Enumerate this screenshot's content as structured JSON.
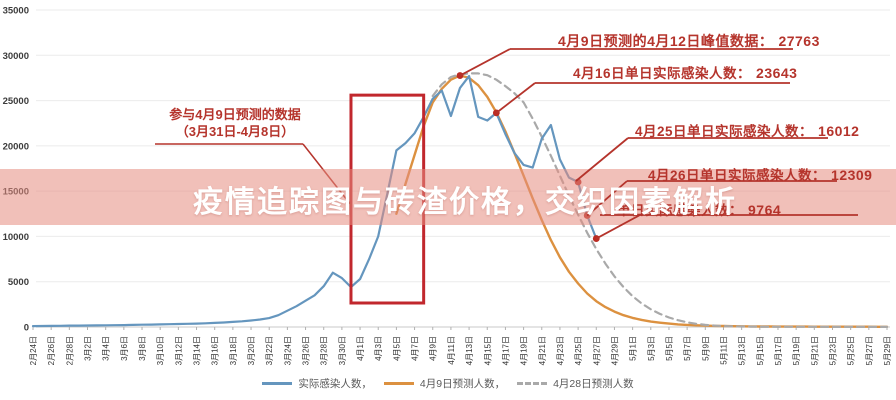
{
  "title_overlay": {
    "text": "疫情追踪图与砖渣价格，交织因素解析",
    "text_color": "#ffffff",
    "band_color": "rgba(229,140,128,0.55)"
  },
  "chart_data": {
    "type": "line",
    "ylim": [
      0,
      35000
    ],
    "y_ticks": [
      0,
      5000,
      10000,
      15000,
      20000,
      25000,
      30000,
      35000
    ],
    "grid": true,
    "x_tick_labels": [
      "2月24日",
      "2月26日",
      "2月28日",
      "3月2日",
      "3月4日",
      "3月6日",
      "3月8日",
      "3月10日",
      "3月12日",
      "3月14日",
      "3月16日",
      "3月18日",
      "3月20日",
      "3月22日",
      "3月24日",
      "3月26日",
      "3月28日",
      "3月30日",
      "4月1日",
      "4月3日",
      "4月5日",
      "4月7日",
      "4月9日",
      "4月11日",
      "4月13日",
      "4月15日",
      "4月17日",
      "4月19日",
      "4月21日",
      "4月23日",
      "4月25日",
      "4月27日",
      "4月29日",
      "5月1日",
      "5月3日",
      "5月5日",
      "5月7日",
      "5月9日",
      "5月11日",
      "5月13日",
      "5月15日",
      "5月17日",
      "5月19日",
      "5月21日",
      "5月23日",
      "5月25日",
      "5月27日",
      "5月29日"
    ],
    "x_total_days": 95,
    "series": [
      {
        "name": "实际感染人数",
        "color": "#6596be",
        "dash": "solid",
        "start_day": 0,
        "values": [
          100,
          110,
          120,
          135,
          150,
          160,
          170,
          180,
          190,
          200,
          215,
          230,
          250,
          270,
          290,
          310,
          330,
          350,
          380,
          410,
          450,
          500,
          560,
          630,
          720,
          830,
          980,
          1300,
          1800,
          2300,
          2900,
          3500,
          4500,
          6000,
          5400,
          4400,
          5300,
          7500,
          10000,
          14700,
          19500,
          20300,
          21400,
          23200,
          25200,
          26100,
          23300,
          26400,
          27700,
          23200,
          22800,
          23643,
          21300,
          19200,
          17900,
          17600,
          20800,
          22300,
          18500,
          16500,
          16012,
          12309,
          9764
        ]
      },
      {
        "name": "4月9日预测人数",
        "color": "#dc9140",
        "dash": "solid",
        "start_day": 40,
        "values": [
          12500,
          15800,
          19000,
          22200,
          24800,
          26300,
          27300,
          27763,
          27500,
          26700,
          25400,
          23700,
          21600,
          19200,
          16700,
          14200,
          11800,
          9600,
          7700,
          6100,
          4800,
          3700,
          2850,
          2200,
          1700,
          1300,
          1000,
          780,
          600,
          470,
          370,
          290,
          230,
          185,
          150,
          125,
          105,
          90,
          78,
          68,
          60,
          54,
          49,
          45,
          42,
          39,
          37,
          35,
          33,
          31,
          30,
          29,
          28,
          27,
          26
        ]
      },
      {
        "name": "4月28日预测人数",
        "color": "#a9a9a9",
        "dash": "dashed",
        "start_day": 44,
        "values": [
          25500,
          26800,
          27600,
          27900,
          28000,
          28000,
          27800,
          27300,
          26600,
          25800,
          24800,
          23000,
          21000,
          18900,
          16700,
          14500,
          12400,
          10400,
          8600,
          7000,
          5600,
          4400,
          3400,
          2600,
          1950,
          1450,
          1050,
          750,
          520,
          350,
          230,
          150,
          100,
          70,
          50,
          40,
          32,
          27,
          24,
          22,
          20,
          19,
          18,
          17,
          16,
          15,
          15,
          14,
          14,
          13,
          13
        ]
      }
    ],
    "annotations": [
      {
        "text": "4月9日预测的4月12日峰值数据：",
        "value": "27763",
        "day": 47,
        "value_num": 27763
      },
      {
        "text": "4月16日单日实际感染人数：",
        "value": "23643",
        "day": 51,
        "value_num": 23643
      },
      {
        "text": "4月25日单日实际感染人数：",
        "value": "16012",
        "day": 60,
        "value_num": 16012
      },
      {
        "text": "4月26日单日实际感染人数：",
        "value": "12309",
        "day": 61,
        "value_num": 12309
      },
      {
        "text": "单日实际感染人数：",
        "value": "9764",
        "day": 62,
        "value_num": 9764
      }
    ],
    "highlight_box": {
      "label_lines": [
        "参与4月9日预测的数据",
        "（3月31日-4月8日）"
      ],
      "x_from_day": 35,
      "x_to_day": 43,
      "v_top": 25600,
      "v_bottom": 2650,
      "color": "#c1272d"
    },
    "legend": [
      {
        "label": "实际感染人数，",
        "color": "#6596be",
        "dash": "solid"
      },
      {
        "label": "4月9日预测人数，",
        "color": "#dc9140",
        "dash": "solid"
      },
      {
        "label": "4月28日预测人数",
        "color": "#a9a9a9",
        "dash": "dashed"
      }
    ],
    "annotation_color": "#b5342c",
    "dot_color": "#bb2c24"
  }
}
